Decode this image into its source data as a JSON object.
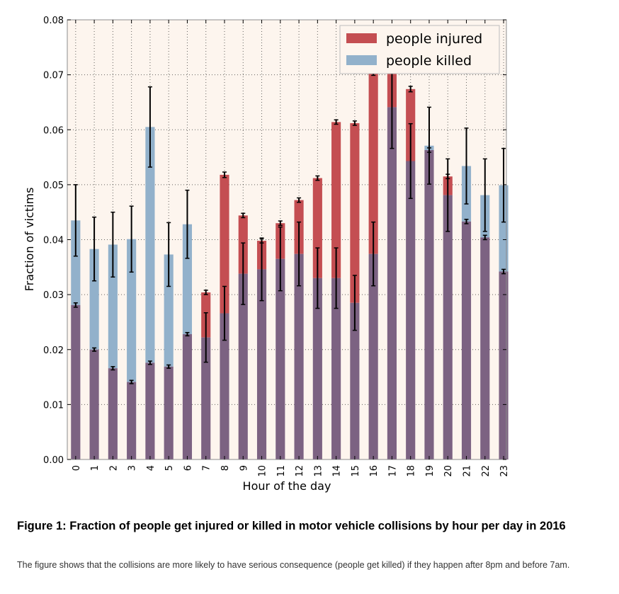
{
  "chart_data": {
    "type": "bar",
    "stacked_overlay": true,
    "xlabel": "Hour of the day",
    "ylabel": "Fraction of victims",
    "ylim": [
      0,
      0.08
    ],
    "yticks": [
      "0.00",
      "0.01",
      "0.02",
      "0.03",
      "0.04",
      "0.05",
      "0.06",
      "0.07",
      "0.08"
    ],
    "categories": [
      "0",
      "1",
      "2",
      "3",
      "4",
      "5",
      "6",
      "7",
      "8",
      "9",
      "10",
      "11",
      "12",
      "13",
      "14",
      "15",
      "16",
      "17",
      "18",
      "19",
      "20",
      "21",
      "22",
      "23"
    ],
    "grid": true,
    "legend_position": "top-right",
    "colors": {
      "injured": "#c44e52",
      "killed": "#92b1cb",
      "overlap": "#7c6282",
      "plot_bg": "#fdf5ee",
      "errorbar": "#000000"
    },
    "series": [
      {
        "name": "people injured",
        "values": [
          0.0281,
          0.02,
          0.0166,
          0.0141,
          0.0176,
          0.0169,
          0.0228,
          0.0304,
          0.0518,
          0.0444,
          0.0398,
          0.043,
          0.0472,
          0.0512,
          0.0614,
          0.0612,
          0.0703,
          0.0713,
          0.0674,
          0.0563,
          0.0515,
          0.0433,
          0.0404,
          0.0342
        ],
        "errors": [
          0.0004,
          0.0003,
          0.0003,
          0.0003,
          0.0003,
          0.0003,
          0.0003,
          0.0004,
          0.0005,
          0.0004,
          0.0004,
          0.0004,
          0.0004,
          0.0004,
          0.0004,
          0.0004,
          0.0004,
          0.0005,
          0.0005,
          0.0004,
          0.0004,
          0.0004,
          0.0004,
          0.0004
        ]
      },
      {
        "name": "people killed",
        "values": [
          0.0435,
          0.0383,
          0.0391,
          0.0401,
          0.0605,
          0.0373,
          0.0428,
          0.0222,
          0.0266,
          0.0338,
          0.0346,
          0.0365,
          0.0374,
          0.033,
          0.033,
          0.0285,
          0.0374,
          0.0641,
          0.0543,
          0.0571,
          0.0481,
          0.0534,
          0.0481,
          0.0499
        ],
        "errors": [
          0.0065,
          0.0058,
          0.0059,
          0.006,
          0.0073,
          0.0058,
          0.0062,
          0.0045,
          0.0049,
          0.0056,
          0.0057,
          0.0058,
          0.0058,
          0.0055,
          0.0055,
          0.005,
          0.0058,
          0.0075,
          0.0068,
          0.007,
          0.0066,
          0.0069,
          0.0066,
          0.0067
        ]
      }
    ]
  },
  "caption": {
    "title": "Figure 1: Fraction of people get injured or killed in motor vehicle collisions by hour per day in 2016",
    "body": "The figure shows that the collisions are more likely to have serious consequence (people get killed) if they happen after 8pm and before 7am."
  }
}
